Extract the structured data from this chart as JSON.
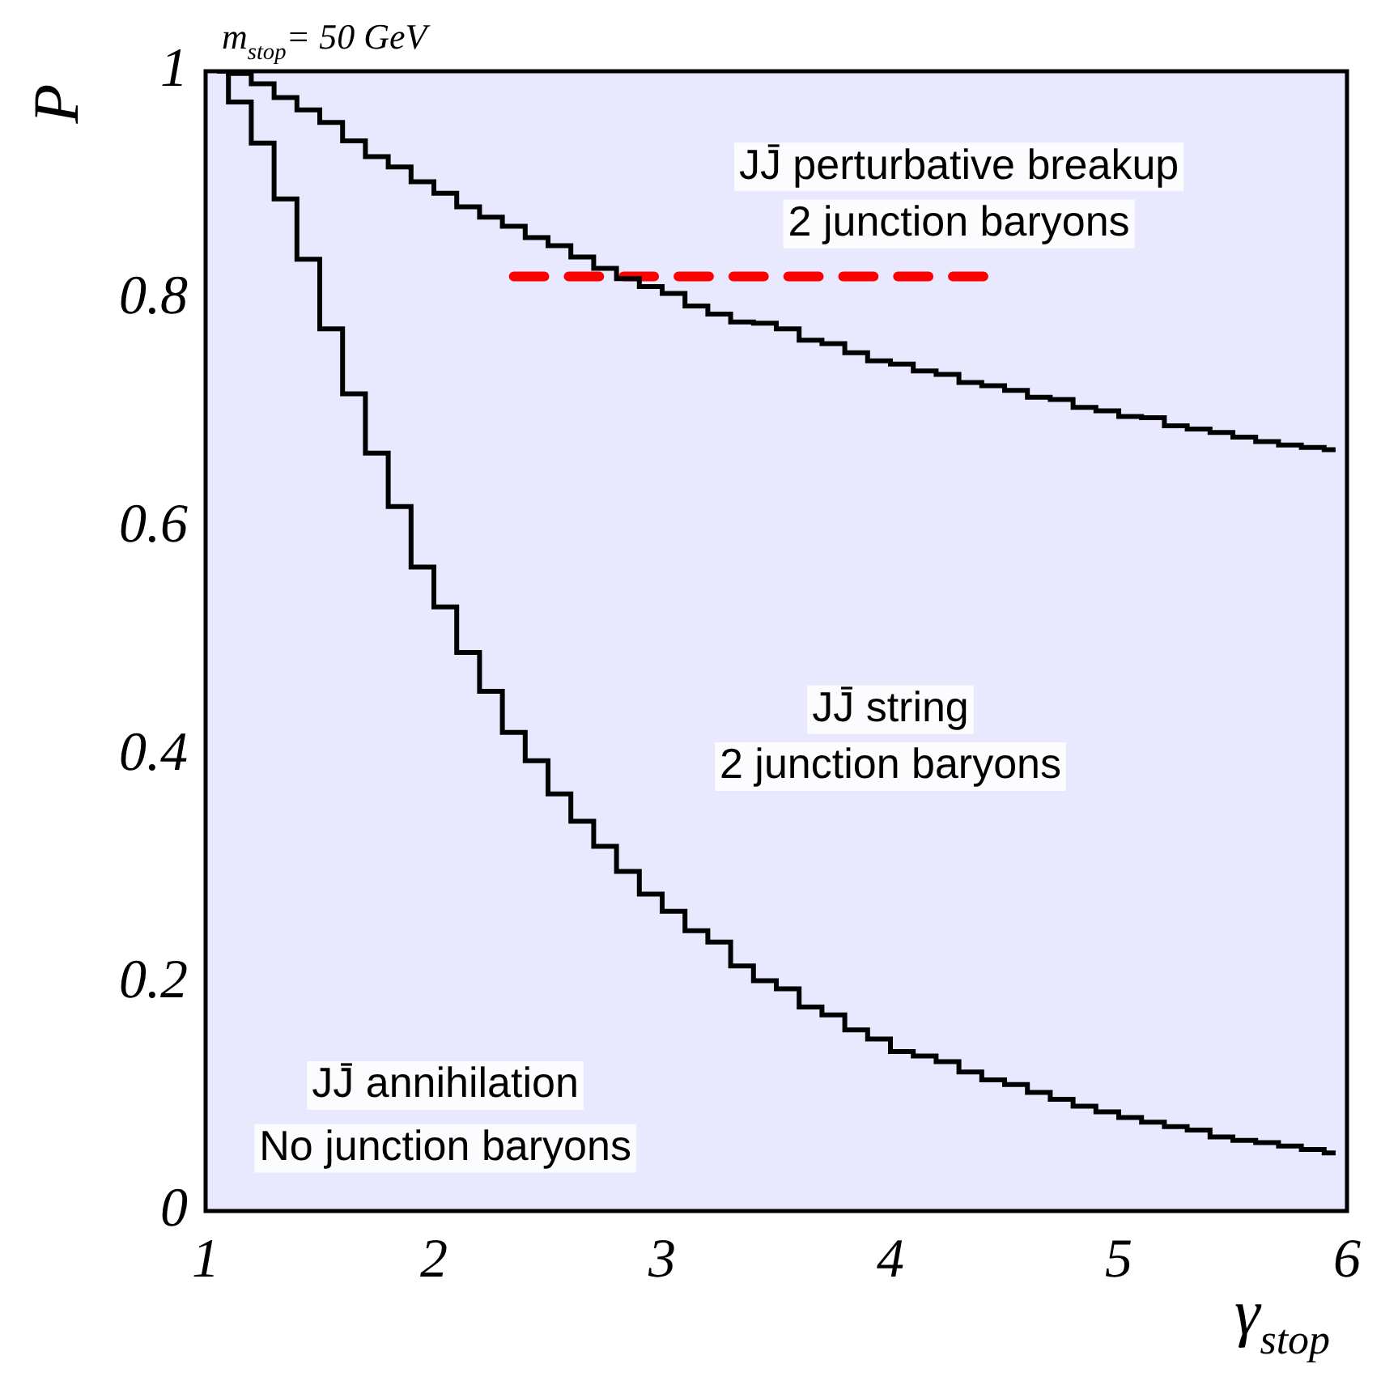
{
  "chart_data": {
    "type": "step",
    "title": "m$_{stop}$= 50 GeV",
    "xlabel": "γ$_{stop}$",
    "ylabel": "P",
    "x": [
      1.05,
      1.15,
      1.25,
      1.35,
      1.45,
      1.55,
      1.65,
      1.75,
      1.85,
      1.95,
      2.05,
      2.15,
      2.25,
      2.35,
      2.45,
      2.55,
      2.65,
      2.75,
      2.85,
      2.95,
      3.05,
      3.15,
      3.25,
      3.35,
      3.45,
      3.55,
      3.65,
      3.75,
      3.85,
      3.95,
      4.05,
      4.15,
      4.25,
      4.35,
      4.45,
      4.55,
      4.65,
      4.75,
      4.85,
      4.95,
      5.05,
      5.15,
      5.25,
      5.35,
      5.45,
      5.55,
      5.65,
      5.75,
      5.85,
      5.95
    ],
    "series": [
      {
        "color": "#000000",
        "values": [
          1.0,
          0.973,
          0.937,
          0.888,
          0.835,
          0.774,
          0.717,
          0.665,
          0.618,
          0.565,
          0.53,
          0.49,
          0.456,
          0.42,
          0.395,
          0.366,
          0.342,
          0.32,
          0.298,
          0.278,
          0.263,
          0.246,
          0.236,
          0.215,
          0.202,
          0.195,
          0.179,
          0.172,
          0.159,
          0.151,
          0.14,
          0.136,
          0.131,
          0.122,
          0.115,
          0.111,
          0.104,
          0.098,
          0.092,
          0.087,
          0.082,
          0.078,
          0.074,
          0.071,
          0.065,
          0.062,
          0.06,
          0.057,
          0.054,
          0.051
        ]
      },
      {
        "color": "#000000",
        "values": [
          1.0,
          0.998,
          0.989,
          0.977,
          0.966,
          0.955,
          0.939,
          0.925,
          0.916,
          0.903,
          0.893,
          0.881,
          0.872,
          0.864,
          0.854,
          0.847,
          0.837,
          0.827,
          0.818,
          0.811,
          0.805,
          0.794,
          0.787,
          0.78,
          0.779,
          0.774,
          0.764,
          0.761,
          0.753,
          0.746,
          0.743,
          0.737,
          0.734,
          0.727,
          0.724,
          0.72,
          0.714,
          0.712,
          0.705,
          0.702,
          0.697,
          0.696,
          0.689,
          0.686,
          0.683,
          0.679,
          0.675,
          0.672,
          0.67,
          0.668
        ]
      },
      {
        "type": "line",
        "color": "#ff0000",
        "line_style": "dashed",
        "x": [
          2.35,
          4.45
        ],
        "values": [
          0.82,
          0.82
        ]
      }
    ],
    "annotations": [
      "JJ̄ perturbative breakup",
      "2 junction baryons",
      "JJ̄ string",
      "2 junction baryons",
      "JJ̄ annihilation",
      "No junction baryons"
    ],
    "xlim": [
      1,
      6
    ],
    "xticks": [
      1,
      2,
      3,
      4,
      5,
      6
    ],
    "ylim": [
      0,
      1
    ],
    "yticks": [
      0,
      0.2,
      0.4,
      0.6,
      0.8,
      1
    ],
    "grid": false,
    "legend": false
  }
}
